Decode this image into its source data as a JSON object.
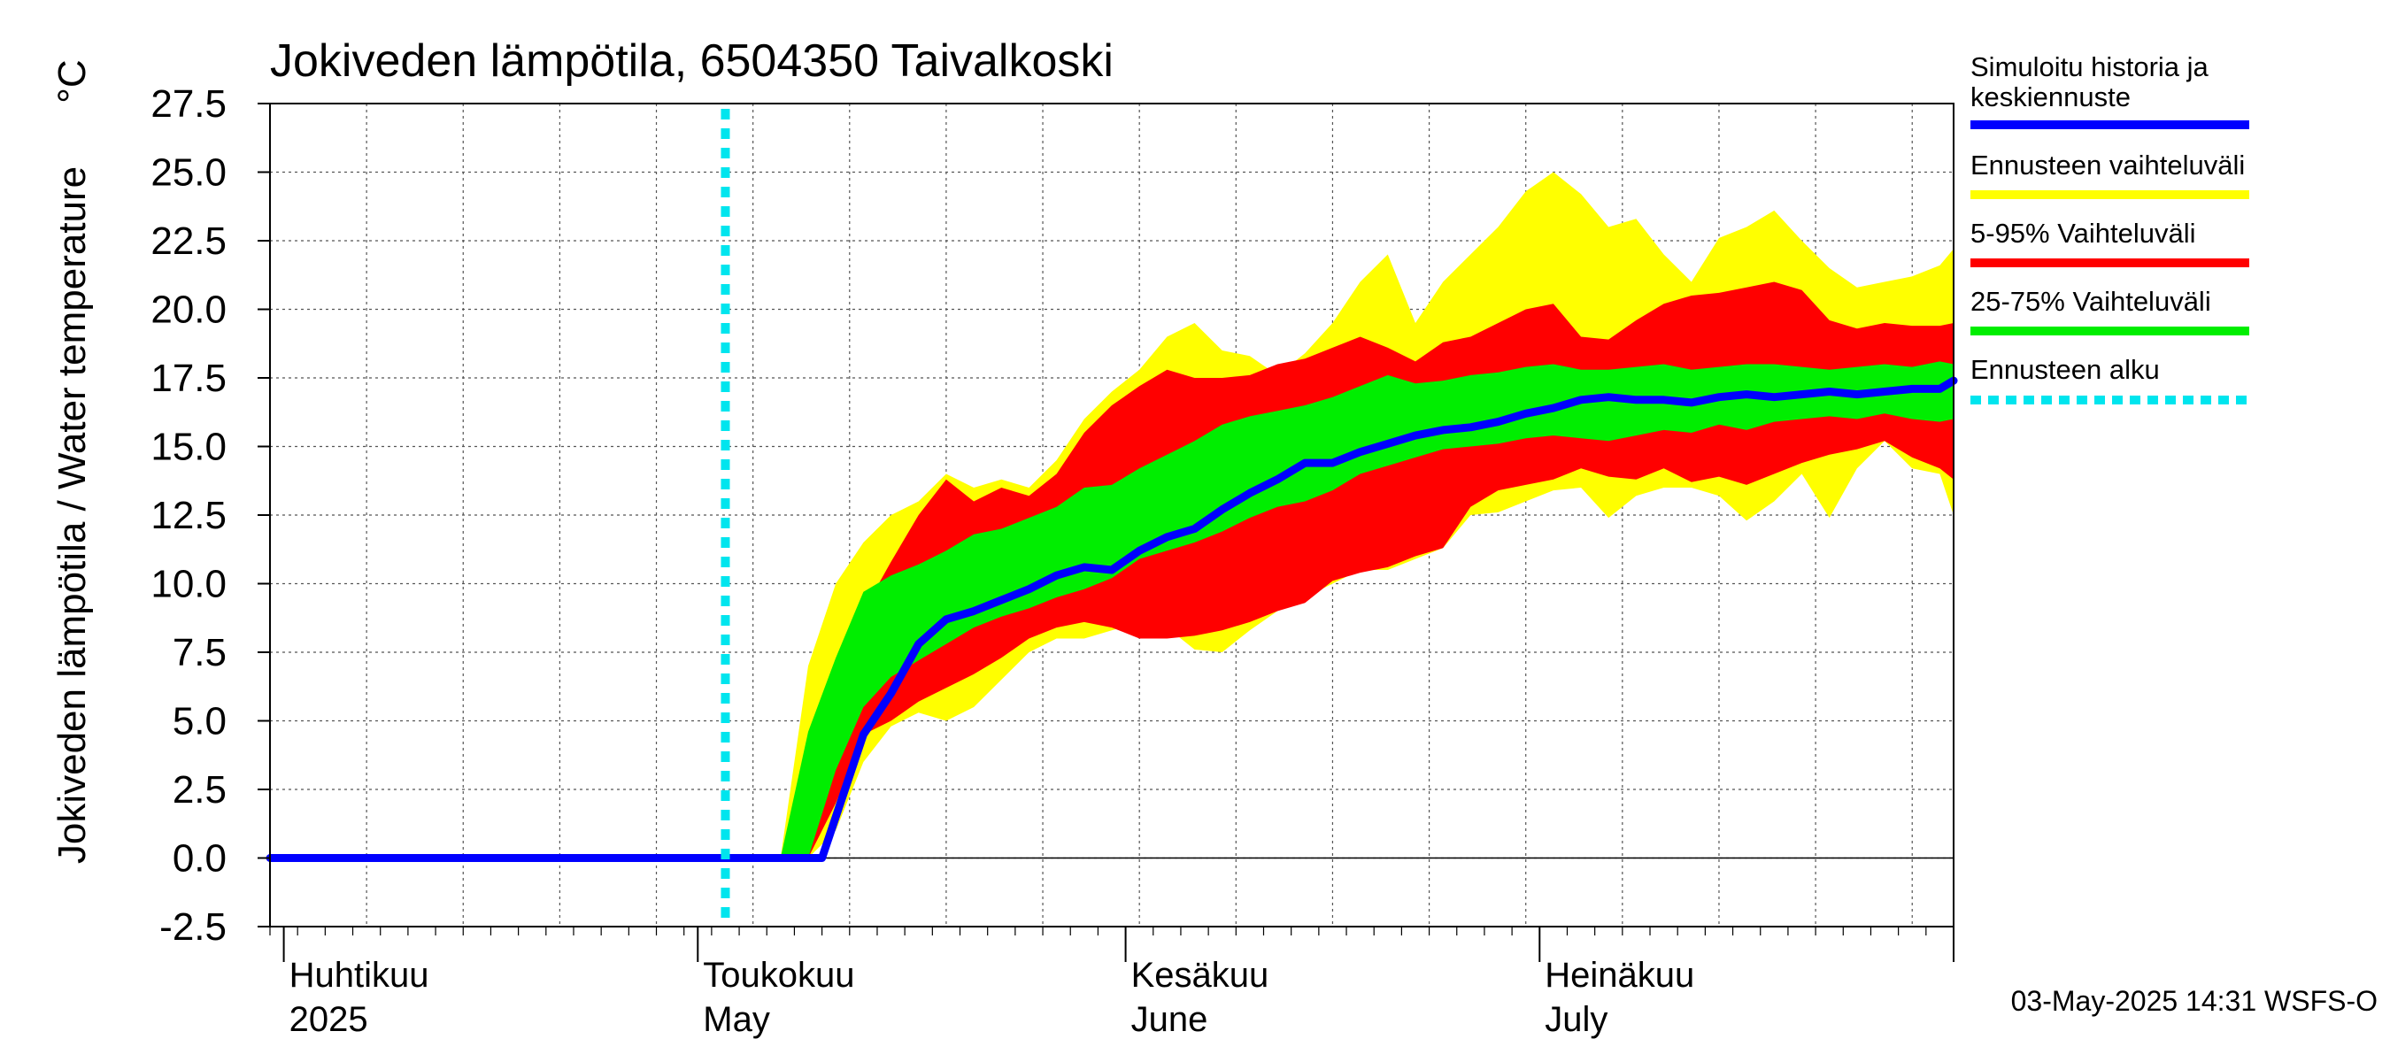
{
  "chart_data": {
    "type": "area",
    "title": "Jokiveden lämpötila, 6504350 Taivalkoski",
    "ylabel": "Jokiveden lämpötila / Water temperature",
    "yunit": "°C",
    "ylim": [
      -2.5,
      27.5
    ],
    "yticks": [
      "-2.5",
      "0.0",
      "2.5",
      "5.0",
      "7.5",
      "10.0",
      "12.5",
      "15.0",
      "17.5",
      "20.0",
      "22.5",
      "25.0",
      "27.5"
    ],
    "xlim": [
      "2025-03-31",
      "2025-07-31"
    ],
    "month_labels": [
      {
        "fi": "Huhtikuu",
        "en": "2025",
        "date": "2025-04-01"
      },
      {
        "fi": "Toukokuu",
        "en": "May",
        "date": "2025-05-01"
      },
      {
        "fi": "Kesäkuu",
        "en": "June",
        "date": "2025-06-01"
      },
      {
        "fi": "Heinäkuu",
        "en": "July",
        "date": "2025-07-01"
      }
    ],
    "grid": true,
    "legend_position": "right",
    "forecast_start": "2025-05-03",
    "footer": "03-May-2025 14:31 WSFS-O",
    "dates": [
      "2025-05-07",
      "2025-05-09",
      "2025-05-11",
      "2025-05-13",
      "2025-05-15",
      "2025-05-17",
      "2025-05-19",
      "2025-05-21",
      "2025-05-23",
      "2025-05-25",
      "2025-05-27",
      "2025-05-29",
      "2025-05-31",
      "2025-06-02",
      "2025-06-04",
      "2025-06-06",
      "2025-06-08",
      "2025-06-10",
      "2025-06-12",
      "2025-06-14",
      "2025-06-16",
      "2025-06-18",
      "2025-06-20",
      "2025-06-22",
      "2025-06-24",
      "2025-06-26",
      "2025-06-28",
      "2025-06-30",
      "2025-07-02",
      "2025-07-04",
      "2025-07-06",
      "2025-07-08",
      "2025-07-10",
      "2025-07-12",
      "2025-07-14",
      "2025-07-16",
      "2025-07-18",
      "2025-07-20",
      "2025-07-22",
      "2025-07-24",
      "2025-07-26",
      "2025-07-28",
      "2025-07-30",
      "2025-07-31"
    ],
    "bands": [
      {
        "name": "Ennusteen vaihteluväli",
        "color": "#ffff00",
        "lower": [
          0.0,
          0.0,
          1.0,
          3.5,
          4.8,
          5.3,
          5.0,
          5.5,
          6.5,
          7.5,
          8.0,
          8.0,
          8.3,
          8.6,
          8.4,
          7.6,
          7.5,
          8.3,
          9.0,
          9.5,
          10.0,
          10.5,
          10.5,
          10.9,
          11.3,
          12.5,
          12.6,
          13.0,
          13.4,
          13.5,
          12.4,
          13.2,
          13.5,
          13.5,
          13.2,
          12.3,
          13.0,
          14.0,
          12.4,
          14.2,
          15.2,
          14.2,
          14.0,
          12.5
        ],
        "upper": [
          0.0,
          7.0,
          10.0,
          11.5,
          12.5,
          13.0,
          14.0,
          13.5,
          13.8,
          13.5,
          14.5,
          16.0,
          17.0,
          17.8,
          19.0,
          19.5,
          18.5,
          18.3,
          17.6,
          18.4,
          19.5,
          21.0,
          22.0,
          19.5,
          21.0,
          22.0,
          23.0,
          24.3,
          25.0,
          24.2,
          23.0,
          23.3,
          22.0,
          21.0,
          22.6,
          23.0,
          23.6,
          22.5,
          21.5,
          20.8,
          21.0,
          21.2,
          21.6,
          22.2
        ]
      },
      {
        "name": "5-95% Vaihteluväli",
        "color": "#ff0000",
        "lower": [
          0.0,
          0.0,
          2.0,
          4.5,
          5.0,
          5.7,
          6.2,
          6.7,
          7.3,
          8.0,
          8.4,
          8.6,
          8.4,
          8.0,
          8.0,
          8.1,
          8.3,
          8.6,
          9.0,
          9.3,
          10.1,
          10.4,
          10.6,
          11.0,
          11.3,
          12.8,
          13.4,
          13.6,
          13.8,
          14.2,
          13.9,
          13.8,
          14.2,
          13.7,
          13.9,
          13.6,
          14.0,
          14.4,
          14.7,
          14.9,
          15.2,
          14.6,
          14.2,
          13.8
        ],
        "upper": [
          0.0,
          3.5,
          6.5,
          9.0,
          10.8,
          12.5,
          13.8,
          13.0,
          13.5,
          13.2,
          14.0,
          15.5,
          16.5,
          17.2,
          17.8,
          17.5,
          17.5,
          17.6,
          18.0,
          18.2,
          18.6,
          19.0,
          18.6,
          18.1,
          18.8,
          19.0,
          19.5,
          20.0,
          20.2,
          19.0,
          18.9,
          19.6,
          20.2,
          20.5,
          20.6,
          20.8,
          21.0,
          20.7,
          19.6,
          19.3,
          19.5,
          19.4,
          19.4,
          19.5
        ]
      },
      {
        "name": "25-75% Vaihteluväli",
        "color": "#00ee00",
        "lower": [
          0.0,
          0.0,
          3.2,
          5.5,
          6.6,
          7.2,
          7.8,
          8.4,
          8.8,
          9.1,
          9.5,
          9.8,
          10.2,
          10.9,
          11.2,
          11.5,
          11.9,
          12.4,
          12.8,
          13.0,
          13.4,
          14.0,
          14.3,
          14.6,
          14.9,
          15.0,
          15.1,
          15.3,
          15.4,
          15.3,
          15.2,
          15.4,
          15.6,
          15.5,
          15.8,
          15.6,
          15.9,
          16.0,
          16.1,
          16.0,
          16.2,
          16.0,
          15.9,
          16.0
        ],
        "upper": [
          0.0,
          4.6,
          7.3,
          9.7,
          10.3,
          10.7,
          11.2,
          11.8,
          12.0,
          12.4,
          12.8,
          13.5,
          13.6,
          14.2,
          14.7,
          15.2,
          15.8,
          16.1,
          16.3,
          16.5,
          16.8,
          17.2,
          17.6,
          17.3,
          17.4,
          17.6,
          17.7,
          17.9,
          18.0,
          17.8,
          17.8,
          17.9,
          18.0,
          17.8,
          17.9,
          18.0,
          18.0,
          17.9,
          17.8,
          17.9,
          18.0,
          17.9,
          18.1,
          18.0
        ]
      }
    ],
    "series": [
      {
        "name": "Simuloitu historia ja keskiennuste",
        "color": "#0000ff",
        "x": [
          "2025-03-31",
          "2025-05-10",
          "2025-05-11",
          "2025-05-13",
          "2025-05-15",
          "2025-05-17",
          "2025-05-19",
          "2025-05-21",
          "2025-05-23",
          "2025-05-25",
          "2025-05-27",
          "2025-05-29",
          "2025-05-31",
          "2025-06-02",
          "2025-06-04",
          "2025-06-06",
          "2025-06-08",
          "2025-06-10",
          "2025-06-12",
          "2025-06-14",
          "2025-06-16",
          "2025-06-18",
          "2025-06-20",
          "2025-06-22",
          "2025-06-24",
          "2025-06-26",
          "2025-06-28",
          "2025-06-30",
          "2025-07-02",
          "2025-07-04",
          "2025-07-06",
          "2025-07-08",
          "2025-07-10",
          "2025-07-12",
          "2025-07-14",
          "2025-07-16",
          "2025-07-18",
          "2025-07-20",
          "2025-07-22",
          "2025-07-24",
          "2025-07-26",
          "2025-07-28",
          "2025-07-30",
          "2025-07-31"
        ],
        "values": [
          0.0,
          0.0,
          1.5,
          4.5,
          6.0,
          7.8,
          8.7,
          9.0,
          9.4,
          9.8,
          10.3,
          10.6,
          10.5,
          11.2,
          11.7,
          12.0,
          12.7,
          13.3,
          13.8,
          14.4,
          14.4,
          14.8,
          15.1,
          15.4,
          15.6,
          15.7,
          15.9,
          16.2,
          16.4,
          16.7,
          16.8,
          16.7,
          16.7,
          16.6,
          16.8,
          16.9,
          16.8,
          16.9,
          17.0,
          16.9,
          17.0,
          17.1,
          17.1,
          17.4
        ]
      }
    ],
    "legend": [
      {
        "label": "Simuloitu historia ja keskiennuste",
        "color": "#0000ff",
        "style": "solid"
      },
      {
        "label": "Ennusteen vaihteluväli",
        "color": "#ffff00",
        "style": "solid"
      },
      {
        "label": "5-95% Vaihteluväli",
        "color": "#ff0000",
        "style": "solid"
      },
      {
        "label": "25-75% Vaihteluväli",
        "color": "#00ee00",
        "style": "solid"
      },
      {
        "label": "Ennusteen alku",
        "color": "#00e5ee",
        "style": "dotted"
      }
    ]
  }
}
